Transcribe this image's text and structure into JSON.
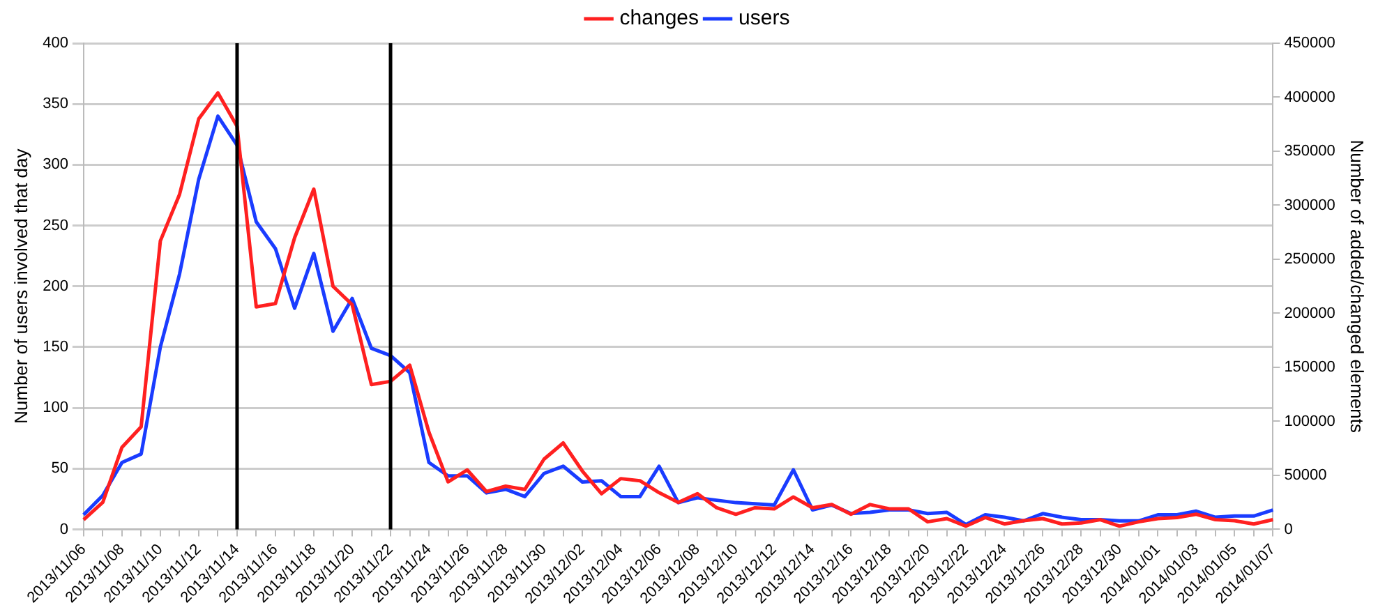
{
  "chart_data": {
    "type": "line",
    "ylabel": "Number of users involved that day",
    "y2label": "Number of added/changed elements",
    "categories": [
      "2013/11/06",
      null,
      "2013/11/08",
      null,
      "2013/11/10",
      null,
      "2013/11/12",
      null,
      "2013/11/14",
      null,
      "2013/11/16",
      null,
      "2013/11/18",
      null,
      "2013/11/20",
      null,
      "2013/11/22",
      null,
      "2013/11/24",
      null,
      "2013/11/26",
      null,
      "2013/11/28",
      null,
      "2013/11/30",
      null,
      "2013/12/02",
      null,
      "2013/12/04",
      null,
      "2013/12/06",
      null,
      "2013/12/08",
      null,
      "2013/12/10",
      null,
      "2013/12/12",
      null,
      "2013/12/14",
      null,
      "2013/12/16",
      null,
      "2013/12/18",
      null,
      "2013/12/20",
      null,
      "2013/12/22",
      null,
      "2013/12/24",
      null,
      "2013/12/26",
      null,
      "2013/12/28",
      null,
      "2013/12/30",
      null,
      "2014/01/01",
      null,
      "2014/01/03",
      null,
      "2014/01/05",
      null,
      "2014/01/07"
    ],
    "series": [
      {
        "name": "changes",
        "color": "#ff2020",
        "axis": "y2",
        "values": [
          9000,
          25000,
          76000,
          95000,
          267000,
          310000,
          380000,
          404000,
          373000,
          206000,
          209000,
          270000,
          315000,
          225000,
          208000,
          134000,
          137000,
          152000,
          90000,
          44000,
          55000,
          35000,
          40000,
          37000,
          65000,
          80000,
          54000,
          33000,
          47000,
          45000,
          34000,
          25000,
          33000,
          20000,
          14000,
          20000,
          19000,
          30000,
          20000,
          23000,
          14000,
          23000,
          19000,
          19000,
          7000,
          10000,
          3000,
          11000,
          5000,
          8000,
          10000,
          5000,
          6000,
          9000,
          3000,
          7000,
          10000,
          11000,
          14000,
          9000,
          8000,
          5000,
          9000
        ]
      },
      {
        "name": "users",
        "color": "#1a3cff",
        "values": [
          12,
          28,
          55,
          62,
          150,
          210,
          288,
          340,
          316,
          253,
          231,
          182,
          227,
          163,
          190,
          149,
          143,
          129,
          55,
          44,
          44,
          30,
          33,
          27,
          46,
          52,
          39,
          40,
          27,
          27,
          52,
          22,
          26,
          24,
          22,
          21,
          20,
          49,
          16,
          20,
          13,
          14,
          16,
          16,
          13,
          14,
          4,
          12,
          10,
          7,
          13,
          10,
          8,
          8,
          7,
          7,
          12,
          12,
          15,
          10,
          11,
          11,
          16
        ]
      }
    ],
    "ylim": [
      0,
      400
    ],
    "yticks": [
      0,
      50,
      100,
      150,
      200,
      250,
      300,
      350,
      400
    ],
    "y2lim": [
      0,
      450000
    ],
    "y2ticks": [
      0,
      50000,
      100000,
      150000,
      200000,
      250000,
      300000,
      350000,
      400000,
      450000
    ],
    "ref_lines": [
      {
        "axis": "x",
        "value": "2013/11/14",
        "color": "#000000"
      },
      {
        "axis": "x",
        "value": "2013/11/22",
        "color": "#000000"
      }
    ],
    "grid": "y",
    "legend": "top",
    "marker": "none",
    "line_style": "solid"
  }
}
